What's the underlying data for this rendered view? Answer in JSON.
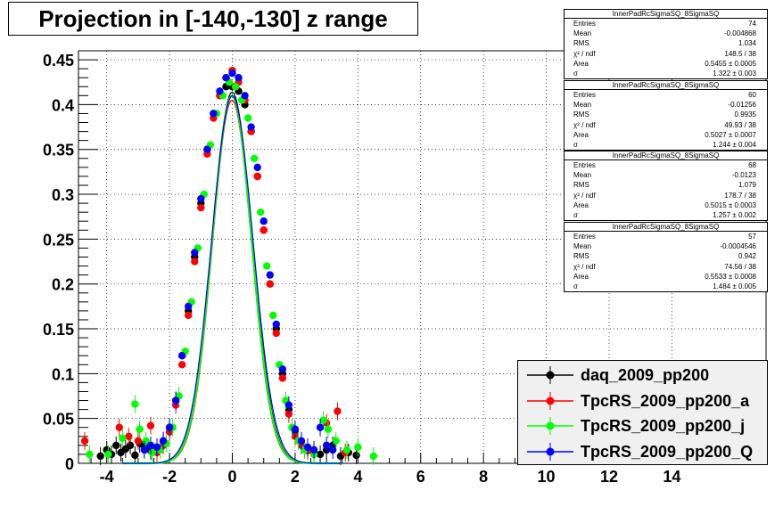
{
  "chart_data": {
    "type": "scatter",
    "title": "Projection in [-140,-130] z range",
    "xlim": [
      -4.9,
      17.0
    ],
    "ylim": [
      0,
      0.46
    ],
    "x_ticks": [
      -4,
      -2,
      0,
      2,
      4,
      6,
      8,
      10,
      12,
      14
    ],
    "y_ticks": [
      0,
      0.05,
      0.1,
      0.15,
      0.2,
      0.25,
      0.3,
      0.35,
      0.4,
      0.45
    ],
    "x_tick_labels": [
      "-4",
      "-2",
      "0",
      "2",
      "4",
      "6",
      "8",
      "10",
      "12",
      "14"
    ],
    "y_tick_labels": [
      "0",
      "0.05",
      "0.1",
      "0.15",
      "0.2",
      "0.25",
      "0.3",
      "0.35",
      "0.4",
      "0.45"
    ],
    "grid": true,
    "series": [
      {
        "name": "daq_2009_pp200",
        "color": "#000000",
        "fit": {
          "amp": 0.414,
          "mean": -0.005,
          "sigma": 0.64
        },
        "points": [
          [
            -4.2,
            0.008
          ],
          [
            -4.0,
            0.015
          ],
          [
            -3.85,
            0.01
          ],
          [
            -3.7,
            0.02
          ],
          [
            -3.55,
            0.012
          ],
          [
            -3.4,
            0.016
          ],
          [
            -3.25,
            0.02
          ],
          [
            -3.1,
            0.009
          ],
          [
            -2.95,
            0.022
          ],
          [
            -2.8,
            0.018
          ],
          [
            -2.6,
            0.014
          ],
          [
            -2.4,
            0.018
          ],
          [
            -2.2,
            0.025
          ],
          [
            -2.0,
            0.04
          ],
          [
            -1.8,
            0.07
          ],
          [
            -1.6,
            0.12
          ],
          [
            -1.4,
            0.17
          ],
          [
            -1.2,
            0.23
          ],
          [
            -1.0,
            0.29
          ],
          [
            -0.8,
            0.35
          ],
          [
            -0.6,
            0.39
          ],
          [
            -0.4,
            0.41
          ],
          [
            -0.2,
            0.42
          ],
          [
            0.0,
            0.42
          ],
          [
            0.2,
            0.415
          ],
          [
            0.4,
            0.4
          ],
          [
            0.6,
            0.37
          ],
          [
            0.8,
            0.32
          ],
          [
            1.0,
            0.26
          ],
          [
            1.2,
            0.2
          ],
          [
            1.4,
            0.15
          ],
          [
            1.6,
            0.1
          ],
          [
            1.8,
            0.06
          ],
          [
            2.0,
            0.035
          ],
          [
            2.2,
            0.022
          ],
          [
            2.4,
            0.015
          ],
          [
            2.6,
            0.012
          ],
          [
            2.8,
            0.01
          ],
          [
            3.0,
            0.015
          ],
          [
            3.2,
            0.02
          ],
          [
            3.45,
            0.008
          ],
          [
            3.7,
            0.012
          ],
          [
            3.95,
            0.009
          ]
        ]
      },
      {
        "name": "TpcRS_2009_pp200_a",
        "color": "#ff0000",
        "fit": {
          "amp": 0.405,
          "mean": -0.01,
          "sigma": 0.62
        },
        "points": [
          [
            -4.7,
            0.025
          ],
          [
            -3.6,
            0.04
          ],
          [
            -3.3,
            0.03
          ],
          [
            -3.0,
            0.025
          ],
          [
            -2.6,
            0.042
          ],
          [
            -2.4,
            0.012
          ],
          [
            -2.2,
            0.02
          ],
          [
            -2.0,
            0.035
          ],
          [
            -1.8,
            0.065
          ],
          [
            -1.6,
            0.11
          ],
          [
            -1.4,
            0.165
          ],
          [
            -1.2,
            0.225
          ],
          [
            -1.0,
            0.285
          ],
          [
            -0.8,
            0.345
          ],
          [
            -0.6,
            0.385
          ],
          [
            -0.4,
            0.41
          ],
          [
            -0.2,
            0.43
          ],
          [
            0.0,
            0.438
          ],
          [
            0.2,
            0.425
          ],
          [
            0.4,
            0.405
          ],
          [
            0.6,
            0.37
          ],
          [
            0.8,
            0.32
          ],
          [
            1.0,
            0.26
          ],
          [
            1.2,
            0.2
          ],
          [
            1.4,
            0.145
          ],
          [
            1.6,
            0.095
          ],
          [
            1.8,
            0.055
          ],
          [
            2.0,
            0.03
          ],
          [
            2.2,
            0.02
          ],
          [
            2.4,
            0.014
          ],
          [
            2.6,
            0.01
          ],
          [
            3.0,
            0.045
          ],
          [
            3.35,
            0.058
          ],
          [
            3.6,
            0.012
          ]
        ]
      },
      {
        "name": "TpcRS_2009_pp200_j",
        "color": "#00ff00",
        "fit": {
          "amp": 0.41,
          "mean": -0.012,
          "sigma": 0.63
        },
        "points": [
          [
            -4.55,
            0.01
          ],
          [
            -3.95,
            0.01
          ],
          [
            -3.5,
            0.028
          ],
          [
            -3.1,
            0.066
          ],
          [
            -2.95,
            0.038
          ],
          [
            -2.75,
            0.025
          ],
          [
            -2.55,
            0.012
          ],
          [
            -2.3,
            0.015
          ],
          [
            -2.1,
            0.022
          ],
          [
            -1.9,
            0.04
          ],
          [
            -1.7,
            0.075
          ],
          [
            -1.5,
            0.125
          ],
          [
            -1.3,
            0.18
          ],
          [
            -1.1,
            0.24
          ],
          [
            -0.9,
            0.3
          ],
          [
            -0.7,
            0.355
          ],
          [
            -0.5,
            0.39
          ],
          [
            -0.3,
            0.41
          ],
          [
            -0.1,
            0.425
          ],
          [
            0.1,
            0.42
          ],
          [
            0.3,
            0.405
          ],
          [
            0.5,
            0.385
          ],
          [
            0.7,
            0.34
          ],
          [
            0.9,
            0.28
          ],
          [
            1.1,
            0.22
          ],
          [
            1.3,
            0.165
          ],
          [
            1.5,
            0.11
          ],
          [
            1.7,
            0.07
          ],
          [
            1.9,
            0.04
          ],
          [
            2.1,
            0.025
          ],
          [
            2.3,
            0.015
          ],
          [
            2.6,
            0.01
          ],
          [
            2.9,
            0.048
          ],
          [
            3.05,
            0.038
          ],
          [
            3.3,
            0.025
          ],
          [
            3.65,
            0.015
          ],
          [
            4.0,
            0.018
          ],
          [
            4.5,
            0.008
          ]
        ]
      },
      {
        "name": "TpcRS_2009_pp200_Q",
        "color": "#0000ff",
        "fit": {
          "amp": 0.41,
          "mean": 0.0,
          "sigma": 0.66
        },
        "points": [
          [
            -2.8,
            0.015
          ],
          [
            -2.6,
            0.02
          ],
          [
            -2.4,
            0.018
          ],
          [
            -2.2,
            0.025
          ],
          [
            -2.0,
            0.04
          ],
          [
            -1.8,
            0.07
          ],
          [
            -1.6,
            0.12
          ],
          [
            -1.4,
            0.175
          ],
          [
            -1.2,
            0.235
          ],
          [
            -1.0,
            0.295
          ],
          [
            -0.8,
            0.35
          ],
          [
            -0.6,
            0.39
          ],
          [
            -0.4,
            0.415
          ],
          [
            -0.2,
            0.43
          ],
          [
            0.0,
            0.435
          ],
          [
            0.2,
            0.43
          ],
          [
            0.4,
            0.41
          ],
          [
            0.6,
            0.375
          ],
          [
            0.8,
            0.33
          ],
          [
            1.0,
            0.27
          ],
          [
            1.2,
            0.21
          ],
          [
            1.4,
            0.155
          ],
          [
            1.6,
            0.105
          ],
          [
            1.8,
            0.065
          ],
          [
            2.0,
            0.038
          ],
          [
            2.2,
            0.025
          ],
          [
            2.4,
            0.018
          ],
          [
            2.6,
            0.015
          ],
          [
            2.8,
            0.04
          ],
          [
            3.0,
            0.02
          ],
          [
            3.2,
            0.015
          ]
        ]
      }
    ]
  },
  "stats": [
    {
      "name": "InnerPadRcSigmaSQ_8SigmaSQ",
      "rows": [
        [
          "Entries",
          "74"
        ],
        [
          "Mean",
          "-0.004868"
        ],
        [
          "RMS",
          "1.034"
        ],
        [
          "χ² / ndf",
          "148.5 / 38"
        ],
        [
          "Area",
          "0.5455 ± 0.0005"
        ],
        [
          "σ",
          "1.322 ± 0.003"
        ]
      ]
    },
    {
      "name": "InnerPadRcSigmaSQ_8SigmaSQ",
      "rows": [
        [
          "Entries",
          "60"
        ],
        [
          "Mean",
          "-0.01256"
        ],
        [
          "RMS",
          "0.9935"
        ],
        [
          "χ² / ndf",
          "49.93 / 38"
        ],
        [
          "Area",
          "0.5027 ± 0.0007"
        ],
        [
          "σ",
          "1.244 ± 0.004"
        ]
      ]
    },
    {
      "name": "InnerPadRcSigmaSQ_8SigmaSQ",
      "rows": [
        [
          "Entries",
          "68"
        ],
        [
          "Mean",
          "-0.0123"
        ],
        [
          "RMS",
          "1.079"
        ],
        [
          "χ² / ndf",
          "178.7 / 38"
        ],
        [
          "Area",
          "0.5015 ± 0.0003"
        ],
        [
          "σ",
          "1.257 ± 0.002"
        ]
      ]
    },
    {
      "name": "InnerPadRcSigmaSQ_8SigmaSQ",
      "rows": [
        [
          "Entries",
          "57"
        ],
        [
          "Mean",
          "-0.0004546"
        ],
        [
          "RMS",
          "0.942"
        ],
        [
          "χ² / ndf",
          "74.56 / 38"
        ],
        [
          "Area",
          "0.5533 ± 0.0008"
        ],
        [
          "σ",
          "1.484 ± 0.005"
        ]
      ]
    }
  ]
}
